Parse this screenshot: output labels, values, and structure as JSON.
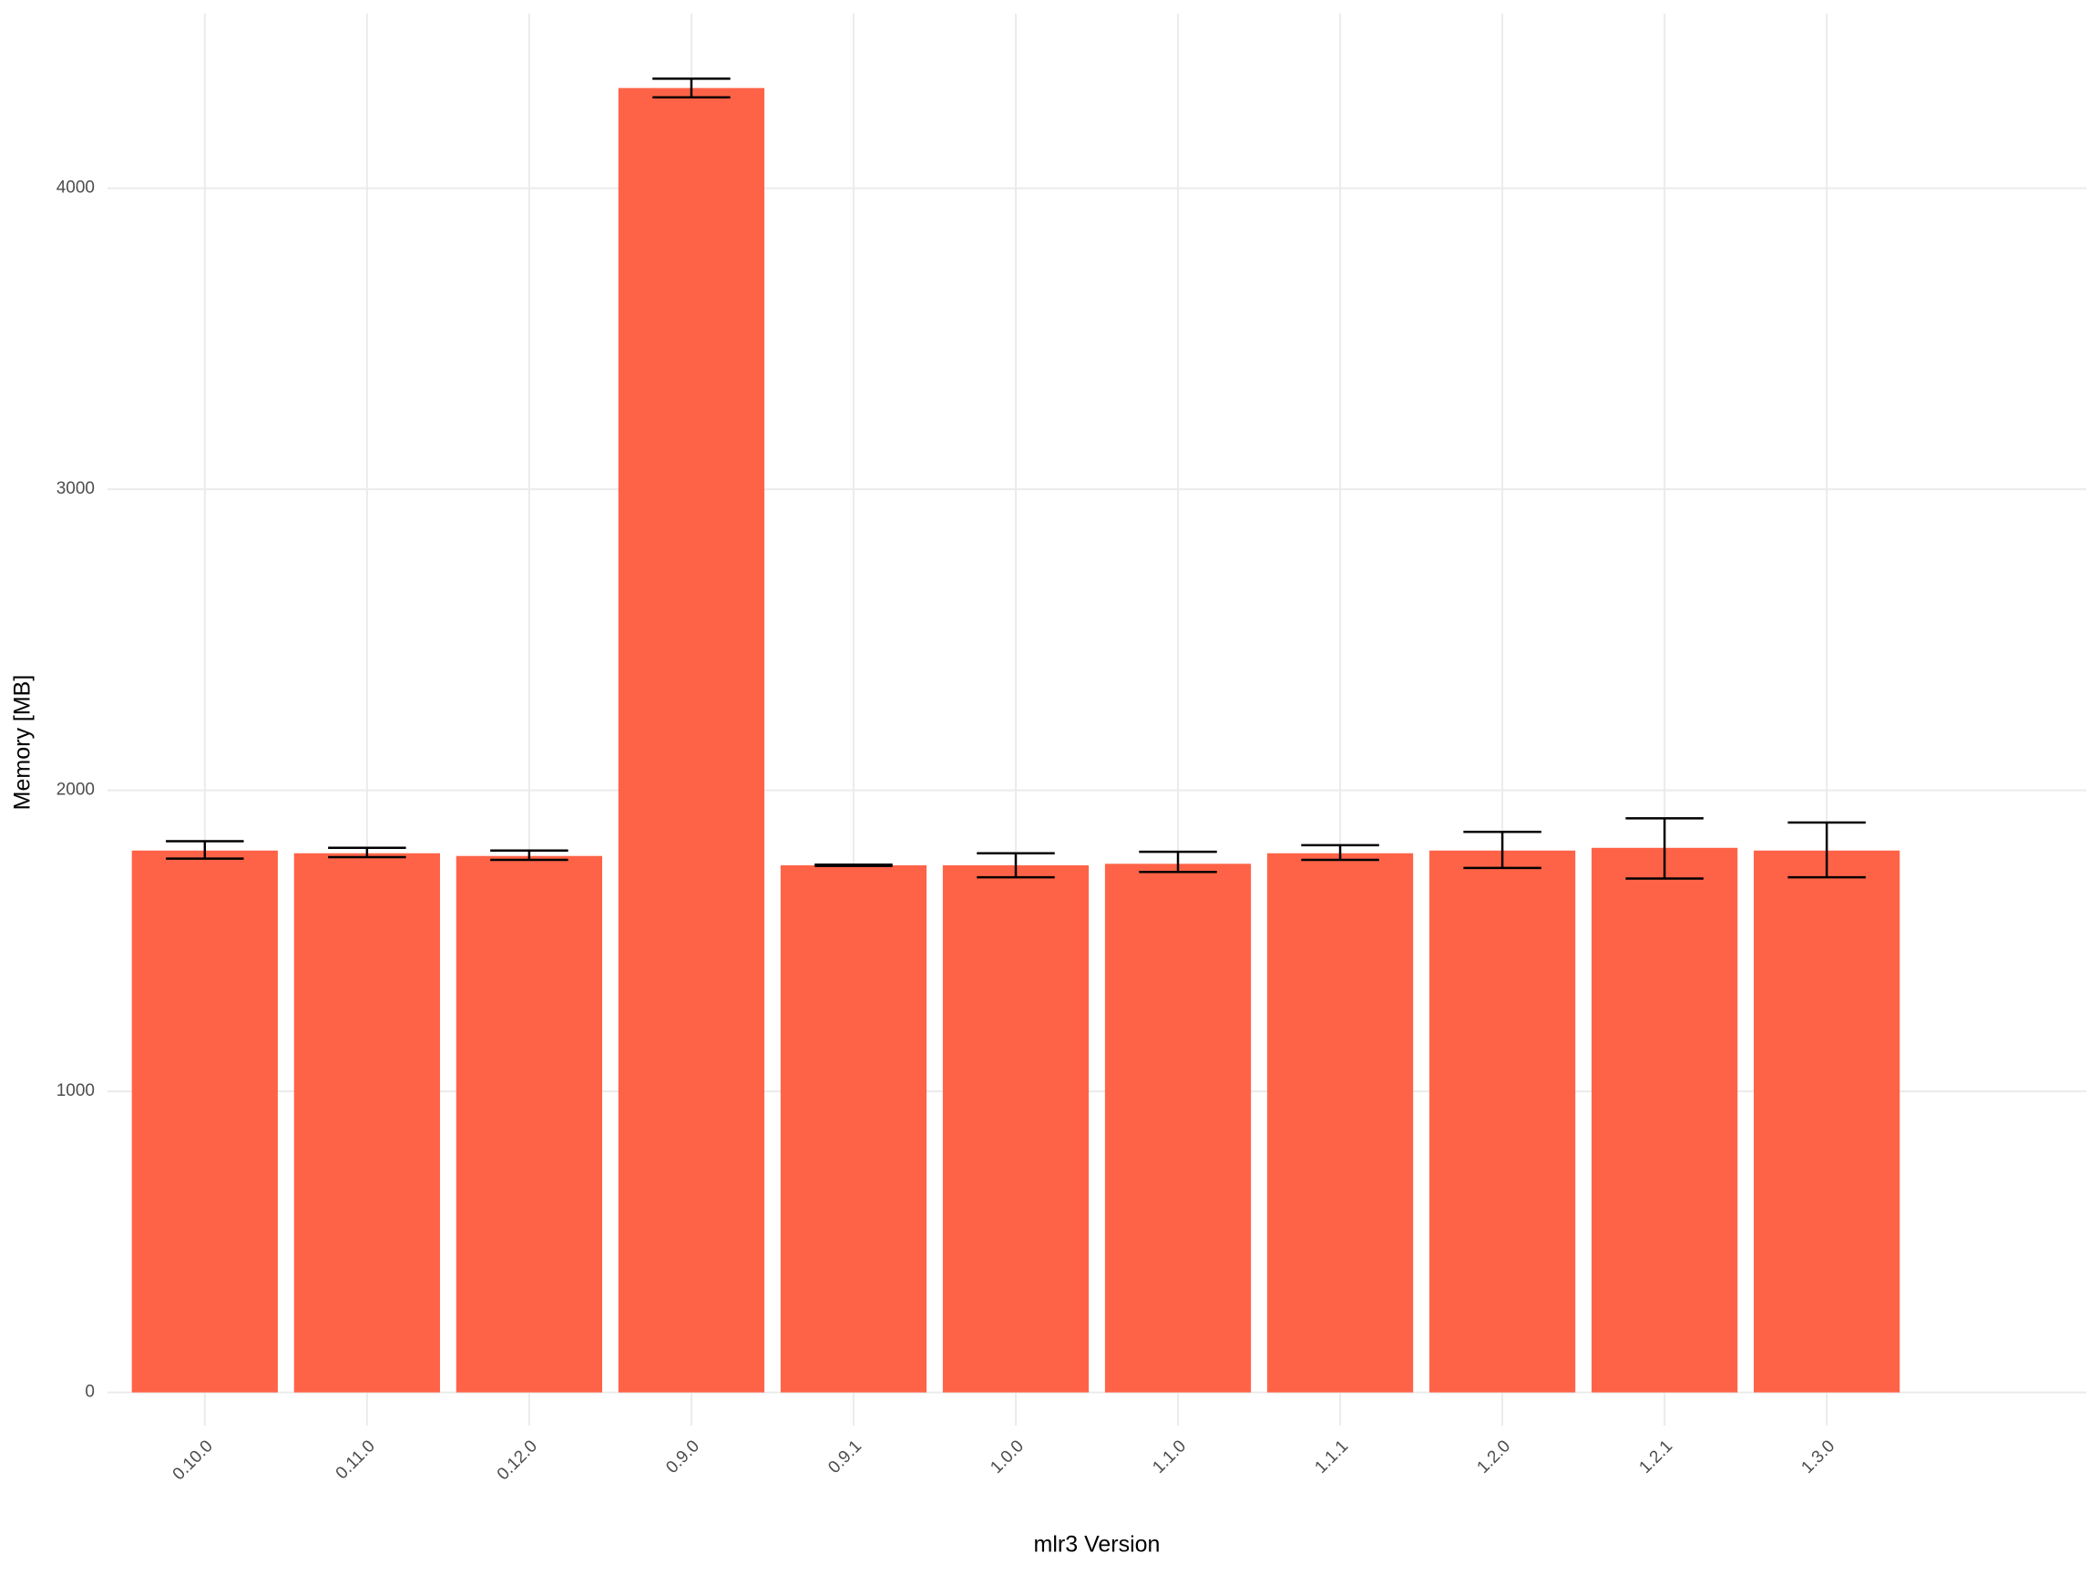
{
  "chart_data": {
    "type": "bar",
    "x_label": "mlr3 Version",
    "y_label": "Memory [MB]",
    "categories": [
      "0.10.0",
      "0.11.0",
      "0.12.0",
      "0.9.0",
      "0.9.1",
      "1.0.0",
      "1.1.0",
      "1.1.1",
      "1.2.0",
      "1.2.1",
      "1.3.0"
    ],
    "values": [
      1800,
      1791,
      1782,
      4333,
      1751,
      1751,
      1756,
      1791,
      1800,
      1809,
      1800
    ],
    "error_lower": [
      1773,
      1778,
      1769,
      4302,
      1749,
      1711,
      1729,
      1769,
      1742,
      1707,
      1711
    ],
    "error_upper": [
      1831,
      1809,
      1800,
      4364,
      1753,
      1791,
      1796,
      1818,
      1862,
      1907,
      1893
    ],
    "color": "#ff6347",
    "ylim": [
      -110,
      4580
    ],
    "yticks": [
      0,
      1000,
      2000,
      3000,
      4000
    ],
    "grid": true
  }
}
